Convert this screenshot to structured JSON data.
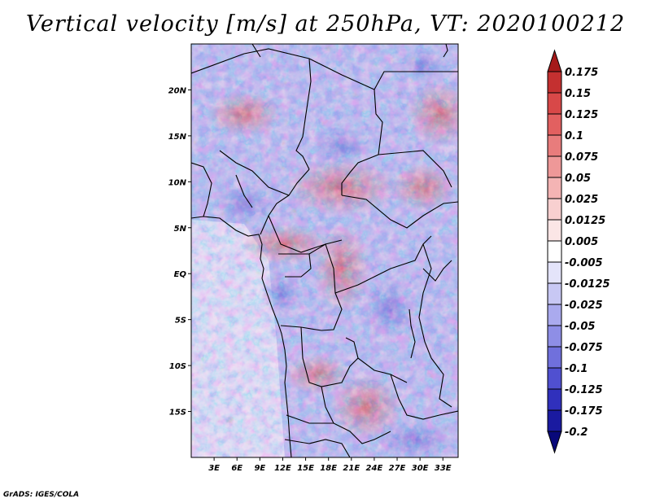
{
  "title": "Vertical velocity [m/s] at 250hPa, VT: 2020100212",
  "credit": "GrADS: IGES/COLA",
  "map": {
    "lon_range": [
      0,
      35
    ],
    "lat_range": [
      -20,
      25
    ],
    "lat_ticks": [
      "20N",
      "15N",
      "10N",
      "5N",
      "EQ",
      "5S",
      "10S",
      "15S"
    ],
    "lon_ticks": [
      "3E",
      "6E",
      "9E",
      "12E",
      "15E",
      "18E",
      "21E",
      "24E",
      "27E",
      "30E",
      "33E"
    ]
  },
  "colorbar": {
    "labels": [
      "0.175",
      "0.15",
      "0.125",
      "0.1",
      "0.075",
      "0.05",
      "0.025",
      "0.0125",
      "0.005",
      "-0.005",
      "-0.0125",
      "-0.025",
      "-0.05",
      "-0.075",
      "-0.1",
      "-0.125",
      "-0.175",
      "-0.2"
    ],
    "colors": [
      "#a51a1a",
      "#c43030",
      "#d84848",
      "#e26060",
      "#e87c7c",
      "#ee9898",
      "#f4b4b4",
      "#f8d0d0",
      "#fbe6e6",
      "#ffffff",
      "#e4e4fa",
      "#c8c8f4",
      "#aaaaee",
      "#8e8ee6",
      "#7070dc",
      "#5050d0",
      "#3030bc",
      "#1a1aa0",
      "#08087a"
    ]
  }
}
